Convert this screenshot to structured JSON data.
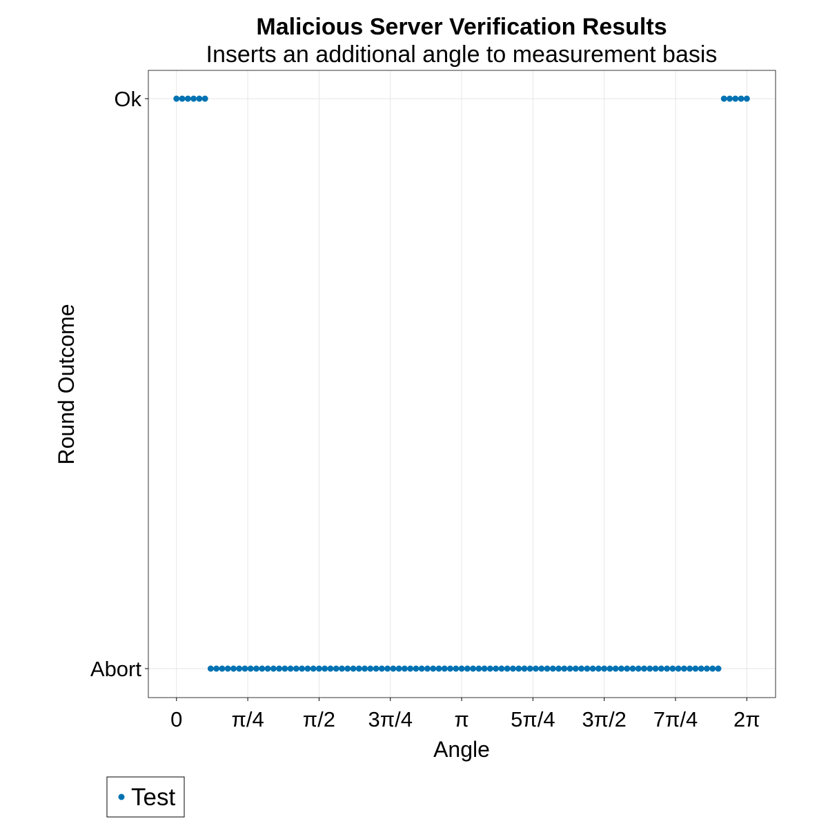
{
  "chart_data": {
    "type": "scatter",
    "title": "Malicious Server Verification Results",
    "subtitle": "Inserts an additional angle to measurement basis",
    "xlabel": "Angle",
    "ylabel": "Round Outcome",
    "xlim": [
      -0.31,
      6.6
    ],
    "x_ticks": [
      {
        "value": 0,
        "label": "0"
      },
      {
        "value": 0.7854,
        "label": "π/4"
      },
      {
        "value": 1.5708,
        "label": "π/2"
      },
      {
        "value": 2.3562,
        "label": "3π/4"
      },
      {
        "value": 3.1416,
        "label": "π"
      },
      {
        "value": 3.927,
        "label": "5π/4"
      },
      {
        "value": 4.7124,
        "label": "3π/2"
      },
      {
        "value": 5.4978,
        "label": "7π/4"
      },
      {
        "value": 6.2832,
        "label": "2π"
      }
    ],
    "y_categories": [
      "Abort",
      "Ok"
    ],
    "grid": true,
    "legend_position": "bottom-left",
    "series": [
      {
        "name": "Test",
        "color": "#0072b2",
        "sample_count": 101,
        "x_start": 0,
        "x_end": 6.2832,
        "ok_x_ranges": [
          [
            0,
            0.32
          ],
          [
            6.0,
            6.2832
          ]
        ],
        "default_outcome": "Abort"
      }
    ]
  }
}
